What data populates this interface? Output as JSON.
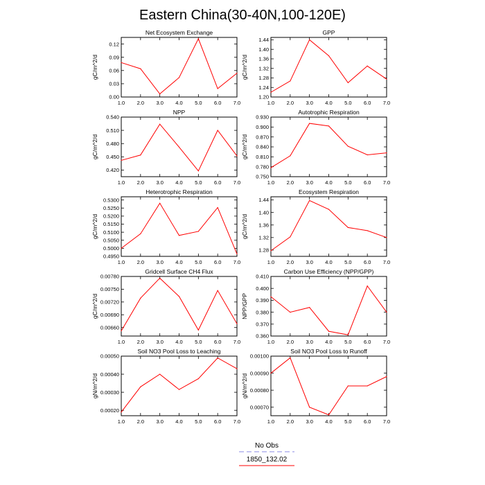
{
  "title": "Eastern China(30-40N,100-120E)",
  "legend": {
    "items": [
      {
        "label": "No Obs",
        "color": "#8a8ae6",
        "dash": true
      },
      {
        "label": "1850_132.02",
        "color": "#ff0000",
        "dash": false
      }
    ]
  },
  "chart_data": [
    {
      "type": "line",
      "title": "Net Ecosystem Exchange",
      "ylabel": "gC/m^2/d",
      "x": [
        1,
        2,
        3,
        4,
        5,
        6,
        7
      ],
      "series": [
        {
          "values": [
            0.078,
            0.064,
            0.007,
            0.044,
            0.132,
            0.019,
            0.054
          ]
        }
      ],
      "xlim": [
        1,
        7
      ],
      "ylim": [
        0.0,
        0.135
      ],
      "xticks": [
        "1.0",
        "2.0",
        "3.0",
        "4.0",
        "5.0",
        "6.0",
        "7.0"
      ],
      "yticks": [
        0.0,
        0.03,
        0.06,
        0.09,
        0.12
      ],
      "yticklabels": [
        "0.00",
        "0.03",
        "0.06",
        "0.09",
        "0.12"
      ]
    },
    {
      "type": "line",
      "title": "GPP",
      "ylabel": "gC/m^2/d",
      "x": [
        1,
        2,
        3,
        4,
        5,
        6,
        7
      ],
      "series": [
        {
          "values": [
            1.22,
            1.267,
            1.44,
            1.373,
            1.26,
            1.33,
            1.275
          ]
        }
      ],
      "xlim": [
        1,
        7
      ],
      "ylim": [
        1.2,
        1.45
      ],
      "xticks": [
        "1.0",
        "2.0",
        "3.0",
        "4.0",
        "5.0",
        "6.0",
        "7.0"
      ],
      "yticks": [
        1.2,
        1.24,
        1.28,
        1.32,
        1.36,
        1.4,
        1.44
      ],
      "yticklabels": [
        "1.20",
        "1.24",
        "1.28",
        "1.32",
        "1.36",
        "1.40",
        "1.44"
      ]
    },
    {
      "type": "line",
      "title": "NPP",
      "ylabel": "gC/m^2/d",
      "x": [
        1,
        2,
        3,
        4,
        5,
        6,
        7
      ],
      "series": [
        {
          "values": [
            0.442,
            0.454,
            0.524,
            0.472,
            0.418,
            0.51,
            0.452
          ]
        }
      ],
      "xlim": [
        1,
        7
      ],
      "ylim": [
        0.405,
        0.54
      ],
      "xticks": [
        "1.0",
        "2.0",
        "3.0",
        "4.0",
        "5.0",
        "6.0",
        "7.0"
      ],
      "yticks": [
        0.42,
        0.45,
        0.48,
        0.51,
        0.54
      ],
      "yticklabels": [
        "0.420",
        "0.450",
        "0.480",
        "0.510",
        "0.540"
      ]
    },
    {
      "type": "line",
      "title": "Autotrophic Respiration",
      "ylabel": "gC/m^2/d",
      "x": [
        1,
        2,
        3,
        4,
        5,
        6,
        7
      ],
      "series": [
        {
          "values": [
            0.777,
            0.813,
            0.911,
            0.903,
            0.842,
            0.816,
            0.822
          ]
        }
      ],
      "xlim": [
        1,
        7
      ],
      "ylim": [
        0.75,
        0.93
      ],
      "xticks": [
        "1.0",
        "2.0",
        "3.0",
        "4.0",
        "5.0",
        "6.0",
        "7.0"
      ],
      "yticks": [
        0.75,
        0.78,
        0.81,
        0.84,
        0.87,
        0.9,
        0.93
      ],
      "yticklabels": [
        "0.750",
        "0.780",
        "0.810",
        "0.840",
        "0.870",
        "0.900",
        "0.930"
      ]
    },
    {
      "type": "line",
      "title": "Heterotrophic Respiration",
      "ylabel": "gC/m^2/d",
      "x": [
        1,
        2,
        3,
        4,
        5,
        6,
        7
      ],
      "series": [
        {
          "values": [
            0.5,
            0.509,
            0.528,
            0.508,
            0.5105,
            0.5253,
            0.4965
          ]
        }
      ],
      "xlim": [
        1,
        7
      ],
      "ylim": [
        0.495,
        0.532
      ],
      "xticks": [
        "1.0",
        "2.0",
        "3.0",
        "4.0",
        "5.0",
        "6.0",
        "7.0"
      ],
      "yticks": [
        0.495,
        0.5,
        0.505,
        0.51,
        0.515,
        0.52,
        0.525,
        0.53
      ],
      "yticklabels": [
        "0.4950",
        "0.5000",
        "0.5050",
        "0.5100",
        "0.5150",
        "0.5200",
        "0.5250",
        "0.5300"
      ]
    },
    {
      "type": "line",
      "title": "Ecosystem Respiration",
      "ylabel": "gC/m^2/d",
      "x": [
        1,
        2,
        3,
        4,
        5,
        6,
        7
      ],
      "series": [
        {
          "values": [
            1.278,
            1.322,
            1.438,
            1.41,
            1.352,
            1.342,
            1.32
          ]
        }
      ],
      "xlim": [
        1,
        7
      ],
      "ylim": [
        1.26,
        1.45
      ],
      "xticks": [
        "1.0",
        "2.0",
        "3.0",
        "4.0",
        "5.0",
        "6.0",
        "7.0"
      ],
      "yticks": [
        1.28,
        1.32,
        1.36,
        1.4,
        1.44
      ],
      "yticklabels": [
        "1.28",
        "1.32",
        "1.36",
        "1.40",
        "1.44"
      ]
    },
    {
      "type": "line",
      "title": "Gridcell Surface CH4 Flux",
      "ylabel": "gC/m^2/d",
      "x": [
        1,
        2,
        3,
        4,
        5,
        6,
        7
      ],
      "series": [
        {
          "values": [
            0.00652,
            0.00729,
            0.00776,
            0.00733,
            0.00654,
            0.00747,
            0.00669
          ]
        }
      ],
      "xlim": [
        1,
        7
      ],
      "ylim": [
        0.0064,
        0.0078
      ],
      "xticks": [
        "1.0",
        "2.0",
        "3.0",
        "4.0",
        "5.0",
        "6.0",
        "7.0"
      ],
      "yticks": [
        0.0066,
        0.0069,
        0.0072,
        0.0075,
        0.0078
      ],
      "yticklabels": [
        "0.00660",
        "0.00690",
        "0.00720",
        "0.00750",
        "0.00780"
      ]
    },
    {
      "type": "line",
      "title": "Carbon Use Efficiency (NPP/GPP)",
      "ylabel": "NPP/GPP",
      "x": [
        1,
        2,
        3,
        4,
        5,
        6,
        7
      ],
      "series": [
        {
          "values": [
            0.393,
            0.38,
            0.384,
            0.364,
            0.361,
            0.402,
            0.38
          ]
        }
      ],
      "xlim": [
        1,
        7
      ],
      "ylim": [
        0.36,
        0.41
      ],
      "xticks": [
        "1.0",
        "2.0",
        "3.0",
        "4.0",
        "5.0",
        "6.0",
        "7.0"
      ],
      "yticks": [
        0.36,
        0.37,
        0.38,
        0.39,
        0.4,
        0.41
      ],
      "yticklabels": [
        "0.360",
        "0.370",
        "0.380",
        "0.390",
        "0.400",
        "0.410"
      ]
    },
    {
      "type": "line",
      "title": "Soil NO3 Pool Loss to Leaching",
      "ylabel": "gN/m^2/d",
      "x": [
        1,
        2,
        3,
        4,
        5,
        6,
        7
      ],
      "series": [
        {
          "values": [
            0.00019,
            0.00033,
            0.0004,
            0.000315,
            0.000375,
            0.00049,
            0.00043
          ]
        }
      ],
      "xlim": [
        1,
        7
      ],
      "ylim": [
        0.00017,
        0.0005
      ],
      "xticks": [
        "1.0",
        "2.0",
        "3.0",
        "4.0",
        "5.0",
        "6.0",
        "7.0"
      ],
      "yticks": [
        0.0002,
        0.0003,
        0.0004,
        0.0005
      ],
      "yticklabels": [
        "0.00020",
        "0.00030",
        "0.00040",
        "0.00050"
      ]
    },
    {
      "type": "line",
      "title": "Soil NO3 Pool Loss to Runoff",
      "ylabel": "gN/m^2/d",
      "x": [
        1,
        2,
        3,
        4,
        5,
        6,
        7
      ],
      "series": [
        {
          "values": [
            0.0009,
            0.00099,
            0.0007,
            0.000655,
            0.000825,
            0.000825,
            0.00088
          ]
        }
      ],
      "xlim": [
        1,
        7
      ],
      "ylim": [
        0.00065,
        0.001
      ],
      "xticks": [
        "1.0",
        "2.0",
        "3.0",
        "4.0",
        "5.0",
        "6.0",
        "7.0"
      ],
      "yticks": [
        0.0007,
        0.0008,
        0.0009,
        0.001
      ],
      "yticklabels": [
        "0.00070",
        "0.00080",
        "0.00090",
        "0.00100"
      ]
    }
  ]
}
